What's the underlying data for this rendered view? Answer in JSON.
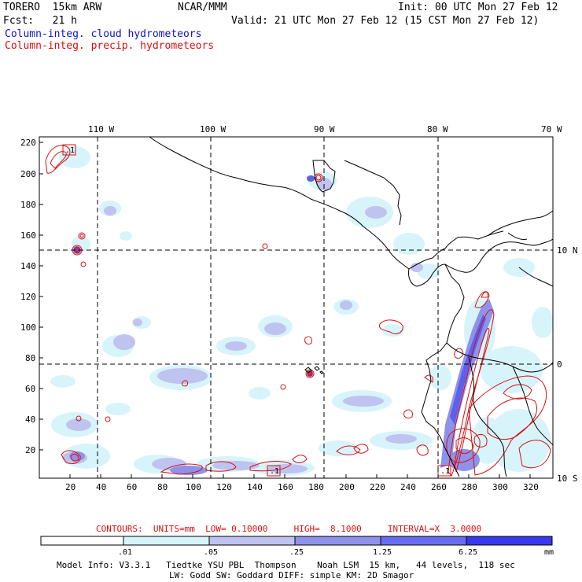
{
  "header": {
    "model": "TORERO  15km ARW",
    "org": "NCAR/MMM",
    "init": "Init: 00 UTC Mon 27 Feb 12",
    "fcst": "Fcst:   21 h",
    "valid": "Valid: 21 UTC Mon 27 Feb 12 (15 CST Mon 27 Feb 12)",
    "field1": "Column-integ. cloud hydrometeors",
    "field2": "Column-integ. precip. hydrometeors"
  },
  "map": {
    "lon_labels": [
      "110 W",
      "100 W",
      "90 W",
      "80 W",
      "70 W"
    ],
    "lat_labels": [
      "10 N",
      "0",
      "10 S"
    ],
    "y_ticks": [
      "220",
      "200",
      "180",
      "160",
      "140",
      "120",
      "100",
      "80",
      "60",
      "40",
      "20"
    ],
    "x_ticks": [
      "20",
      "40",
      "60",
      "80",
      "100",
      "120",
      "140",
      "160",
      "180",
      "200",
      "220",
      "240",
      "260",
      "280",
      "300",
      "320"
    ],
    "contour_label": ".1"
  },
  "contours_info": "CONTOURS:  UNITS=mm  LOW= 0.10000     HIGH=  8.1000     INTERVAL=X  3.0000",
  "colorbar": {
    "labels": [
      ".01",
      ".05",
      ".25",
      "1.25",
      "6.25"
    ],
    "unit": "mm",
    "colors": [
      "#ffffff",
      "#d8f4fb",
      "#bfc3ef",
      "#8f92ea",
      "#6a6cf0",
      "#3838ec",
      "#1a1ae8"
    ]
  },
  "footer": {
    "line1": "Model Info: V3.3.1   Tiedtke YSU PBL  Thompson    Noah LSM  15 km,   44 levels,  118 sec",
    "line2": "LW: Godd SW: Goddard DIFF: simple KM: 2D Smagor"
  },
  "colors": {
    "cloud": "#1010d0",
    "precip": "#d81010"
  }
}
